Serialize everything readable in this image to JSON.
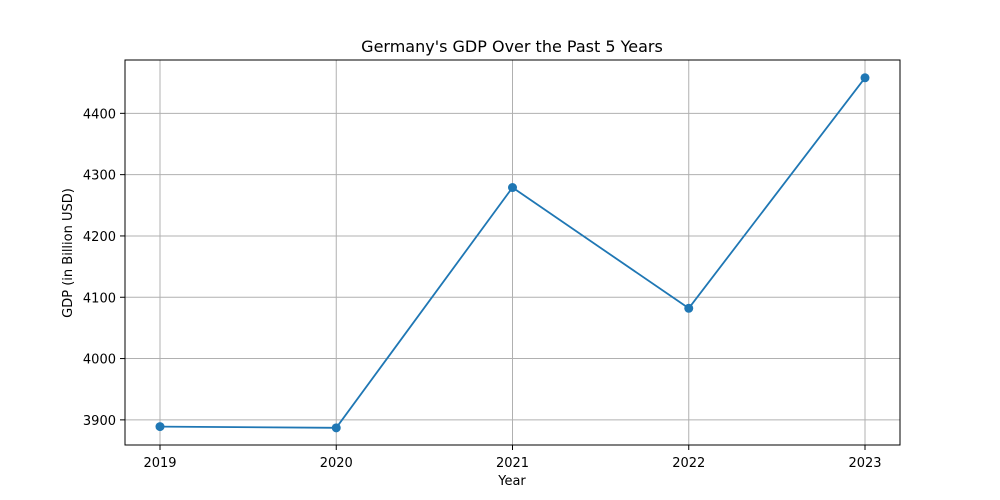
{
  "chart_data": {
    "type": "line",
    "title": "Germany's GDP Over the Past 5 Years",
    "xlabel": "Year",
    "ylabel": "GDP (in Billion USD)",
    "categories": [
      "2019",
      "2020",
      "2021",
      "2022",
      "2023"
    ],
    "series": [
      {
        "values": [
          3889,
          3887,
          4279,
          4082,
          4458
        ]
      }
    ],
    "yticks": [
      3900,
      4000,
      4100,
      4200,
      4300,
      4400
    ],
    "ylim": [
      3859,
      4487
    ],
    "grid": true,
    "colors": {
      "line": "#1f77b4",
      "grid": "#b0b0b0"
    }
  }
}
